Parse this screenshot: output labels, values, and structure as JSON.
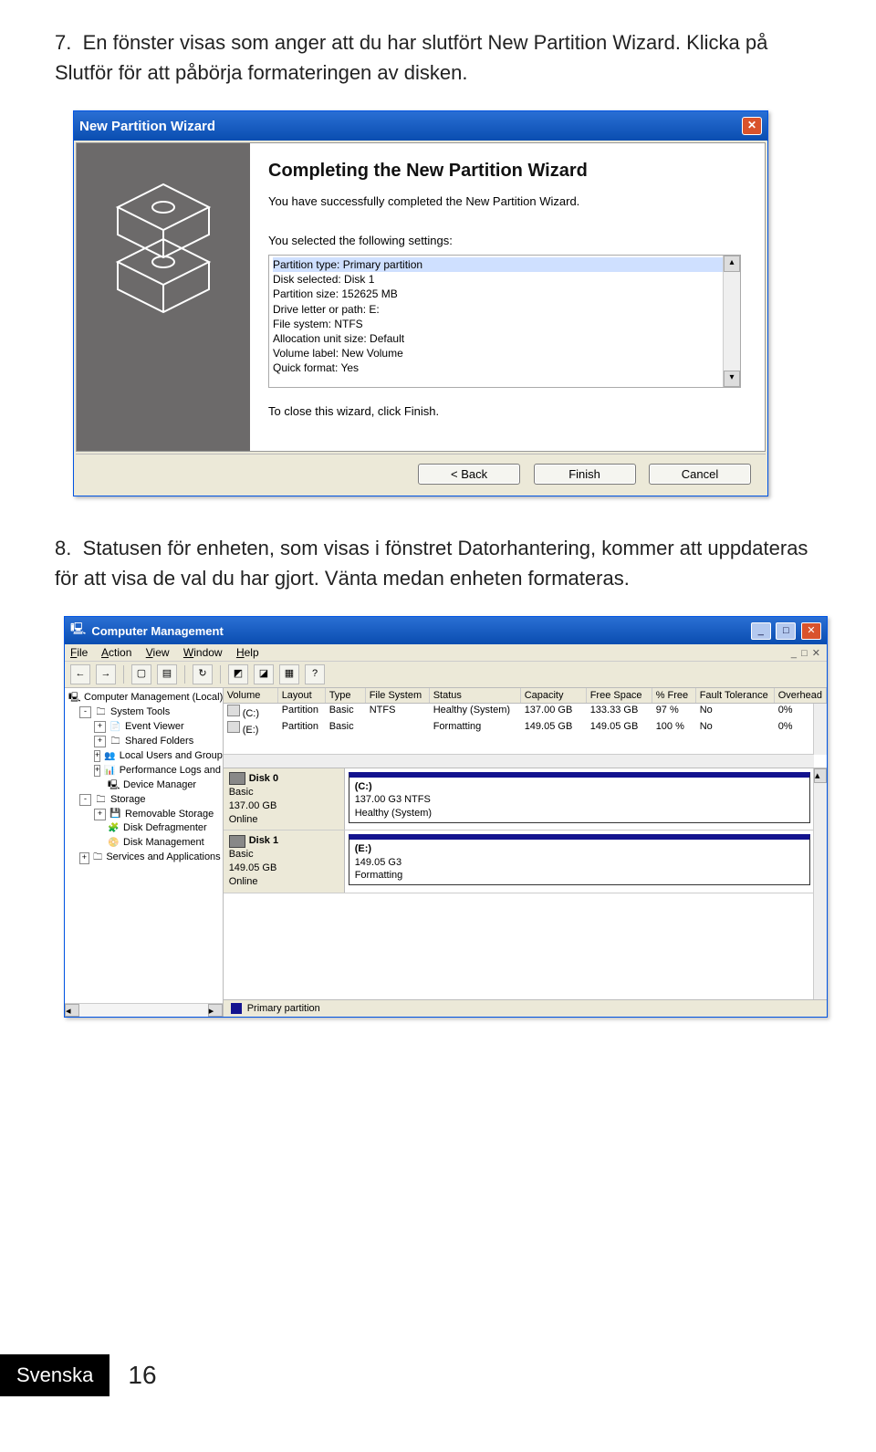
{
  "instruction7": "7.  En fönster visas som anger att du har slutfört New Partition Wizard. Klicka på Slutför för att påbörja formateringen av disken.",
  "wizard": {
    "title": "New Partition Wizard",
    "heading": "Completing the New Partition Wizard",
    "completed": "You have successfully completed the New Partition Wizard.",
    "selected_intro": "You selected the following settings:",
    "settings": [
      "Partition type: Primary partition",
      "Disk selected: Disk 1",
      "Partition size: 152625 MB",
      "Drive letter or path: E:",
      "File system: NTFS",
      "Allocation unit size: Default",
      "Volume label: New Volume",
      "Quick format: Yes"
    ],
    "close_hint": "To close this wizard, click Finish.",
    "btn_back": "< Back",
    "btn_finish": "Finish",
    "btn_cancel": "Cancel"
  },
  "instruction8": "8.  Statusen för enheten, som visas i fönstret Datorhantering, kommer att uppdateras för att visa de val du har gjort. Vänta medan enheten formateras.",
  "mgmt": {
    "title": "Computer Management",
    "menu": [
      "File",
      "Action",
      "View",
      "Window",
      "Help"
    ],
    "tree": [
      {
        "lv": 0,
        "ex": " ",
        "icon": "🖳",
        "label": "Computer Management (Local)"
      },
      {
        "lv": 1,
        "ex": "-",
        "icon": "🗀",
        "label": "System Tools"
      },
      {
        "lv": 2,
        "ex": "+",
        "icon": "📄",
        "label": "Event Viewer"
      },
      {
        "lv": 2,
        "ex": "+",
        "icon": "🗀",
        "label": "Shared Folders"
      },
      {
        "lv": 2,
        "ex": "+",
        "icon": "👥",
        "label": "Local Users and Groups"
      },
      {
        "lv": 2,
        "ex": "+",
        "icon": "📊",
        "label": "Performance Logs and Alerts"
      },
      {
        "lv": 2,
        "ex": " ",
        "icon": "🖳",
        "label": "Device Manager"
      },
      {
        "lv": 1,
        "ex": "-",
        "icon": "🗀",
        "label": "Storage"
      },
      {
        "lv": 2,
        "ex": "+",
        "icon": "💾",
        "label": "Removable Storage"
      },
      {
        "lv": 2,
        "ex": " ",
        "icon": "🧩",
        "label": "Disk Defragmenter"
      },
      {
        "lv": 2,
        "ex": " ",
        "icon": "📀",
        "label": "Disk Management"
      },
      {
        "lv": 1,
        "ex": "+",
        "icon": "🗀",
        "label": "Services and Applications"
      }
    ],
    "gridcols": [
      "Volume",
      "Layout",
      "Type",
      "File System",
      "Status",
      "Capacity",
      "Free Space",
      "% Free",
      "Fault Tolerance",
      "Overhead"
    ],
    "gridrows": [
      {
        "vol": "(C:)",
        "lay": "Partition",
        "typ": "Basic",
        "fs": "NTFS",
        "st": "Healthy (System)",
        "cap": "137.00 GB",
        "free": "133.33 GB",
        "pf": "97 %",
        "ft": "No",
        "ov": "0%"
      },
      {
        "vol": "(E:)",
        "lay": "Partition",
        "typ": "Basic",
        "fs": "",
        "st": "Formatting",
        "cap": "149.05 GB",
        "free": "149.05 GB",
        "pf": "100 %",
        "ft": "No",
        "ov": "0%"
      }
    ],
    "disk0": {
      "name": "Disk 0",
      "kind": "Basic",
      "size": "137.00 GB",
      "state": "Online",
      "part_label": "(C:)",
      "part_size": "137.00 G3 NTFS",
      "part_state": "Healthy (System)"
    },
    "disk1": {
      "name": "Disk 1",
      "kind": "Basic",
      "size": "149.05 GB",
      "state": "Online",
      "part_label": "(E:)",
      "part_size": "149.05 G3",
      "part_state": "Formatting"
    },
    "legend": "Primary partition"
  },
  "footer": {
    "lang": "Svenska",
    "page": "16"
  }
}
